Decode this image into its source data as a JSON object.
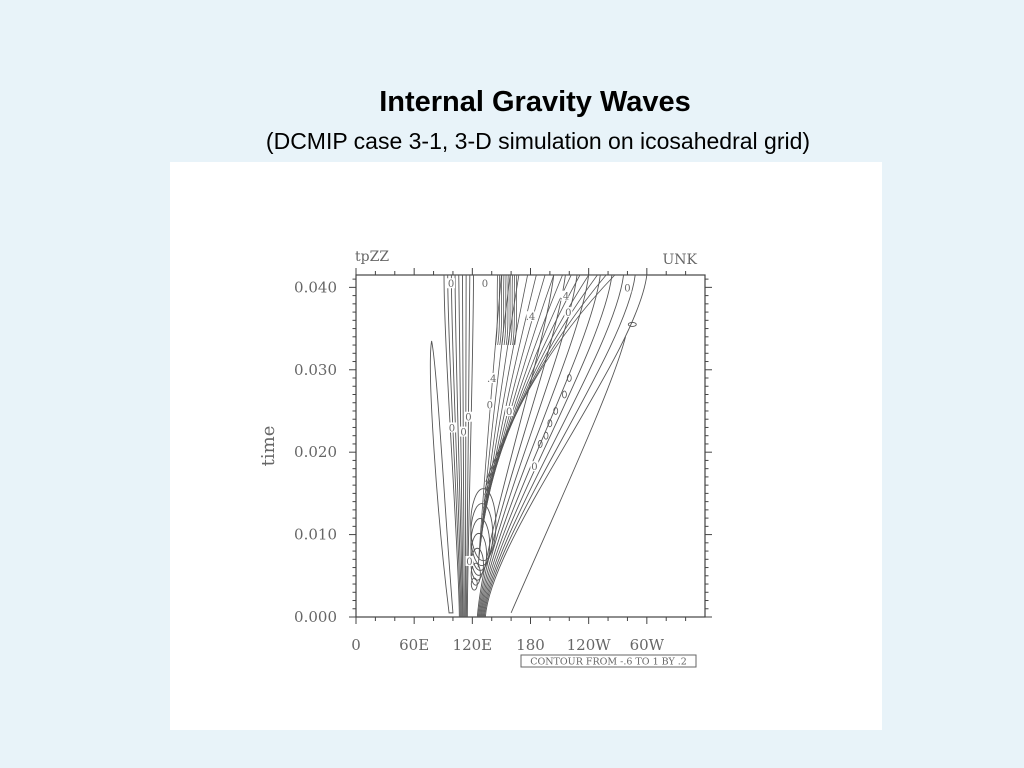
{
  "slide": {
    "title": "Internal Gravity Waves",
    "subtitle": "(DCMIP case 3-1, 3-D simulation on icosahedral grid)"
  },
  "chart_data": {
    "type": "contour",
    "variable_label": "tpZZ",
    "units_label": "UNK",
    "ylabel": "time",
    "xlabel": "",
    "x_ticks": [
      "0",
      "60E",
      "120E",
      "180",
      "120W",
      "60W"
    ],
    "x_tick_values": [
      0,
      60,
      120,
      180,
      240,
      300
    ],
    "xlim": [
      0,
      360
    ],
    "y_ticks": [
      "0.000",
      "0.010",
      "0.020",
      "0.030",
      "0.040"
    ],
    "y_tick_values": [
      0.0,
      0.01,
      0.02,
      0.03,
      0.04
    ],
    "ylim": [
      0.0,
      0.0415
    ],
    "contour_info": "CONTOUR FROM -.6 TO 1 BY .2",
    "contour_levels": [
      -0.6,
      -0.4,
      -0.2,
      0,
      0.2,
      0.4,
      0.6,
      0.8,
      1.0
    ],
    "contour_labels": [
      {
        "text": "0",
        "lon": 117,
        "t": 0.0068
      },
      {
        "text": "0",
        "lon": 111,
        "t": 0.0225
      },
      {
        "text": "0",
        "lon": 99,
        "t": 0.023
      },
      {
        "text": "0",
        "lon": 116,
        "t": 0.0243
      },
      {
        "text": "0",
        "lon": 98,
        "t": 0.0405
      },
      {
        "text": "0",
        "lon": 133,
        "t": 0.0405
      },
      {
        "text": "0",
        "lon": 138,
        "t": 0.0258
      },
      {
        "text": "0",
        "lon": 158,
        "t": 0.025
      },
      {
        "text": "0",
        "lon": 219,
        "t": 0.037
      },
      {
        "text": "0",
        "lon": 280,
        "t": 0.04
      },
      {
        "text": "0",
        "lon": 184,
        "t": 0.0183
      },
      {
        "text": ".4",
        "lon": 140,
        "t": 0.029
      },
      {
        "text": ".4",
        "lon": 180,
        "t": 0.0365
      },
      {
        "text": ".4",
        "lon": 215,
        "t": 0.039
      }
    ]
  }
}
